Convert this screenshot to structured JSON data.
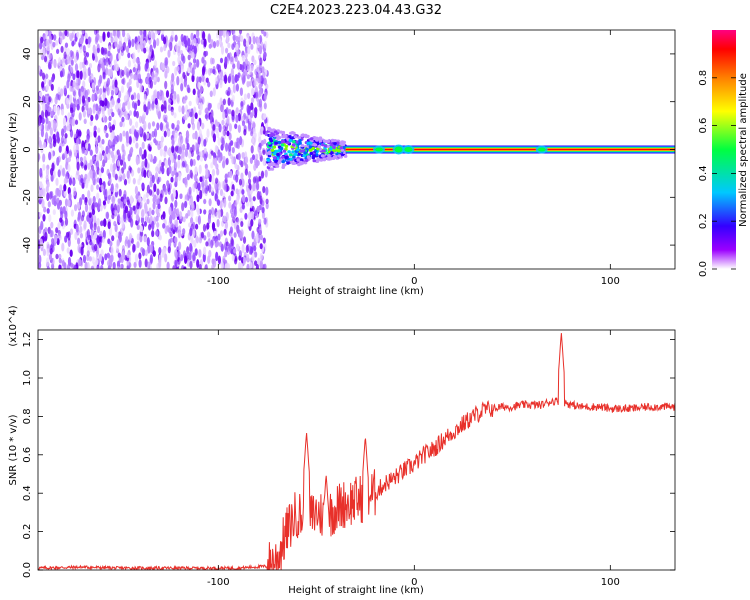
{
  "title": "C2E4.2023.223.04.43.G32",
  "chart_data": [
    {
      "type": "heatmap",
      "xlabel": "Height of straight line (km)",
      "ylabel": "Frequency (Hz)",
      "xlim": [
        -192,
        133
      ],
      "ylim": [
        -50,
        50
      ],
      "xticks": [
        -100,
        0,
        100
      ],
      "yticks": [
        -40,
        -20,
        0,
        20,
        40
      ],
      "colorbar": {
        "label": "Normalized spectral amplitude",
        "range": [
          0,
          1
        ],
        "ticks": [
          "0.0",
          "0.2",
          "0.4",
          "0.6",
          "0.8"
        ]
      },
      "signal": {
        "noise_region_x": [
          -192,
          -75
        ],
        "spread_region_x": [
          -75,
          -35
        ],
        "line_region_x": [
          -35,
          133
        ],
        "line_frequency": 0.0,
        "line_amplitude": 0.95
      }
    },
    {
      "type": "line",
      "xlabel": "Height of straight line (km)",
      "ylabel": "SNR (10 * v/v)",
      "yscale_note": "(x10^4)",
      "xlim": [
        -192,
        133
      ],
      "ylim": [
        0,
        1.25
      ],
      "xticks": [
        -100,
        0,
        100
      ],
      "yticks": [
        "0.0",
        "0.2",
        "0.4",
        "0.6",
        "0.8",
        "1.0",
        "1.2"
      ],
      "series": [
        {
          "color": "#e8302a",
          "x": [
            -192,
            -170,
            -150,
            -130,
            -110,
            -90,
            -75,
            -70,
            -65,
            -60,
            -55,
            -50,
            -45,
            -40,
            -35,
            -30,
            -25,
            -20,
            -15,
            -10,
            -5,
            0,
            5,
            10,
            15,
            20,
            25,
            30,
            35,
            40,
            45,
            50,
            55,
            60,
            65,
            70,
            75,
            80,
            85,
            90,
            95,
            100,
            110,
            120,
            133
          ],
          "y": [
            0.01,
            0.015,
            0.01,
            0.01,
            0.01,
            0.01,
            0.02,
            0.06,
            0.2,
            0.3,
            0.25,
            0.3,
            0.28,
            0.32,
            0.35,
            0.36,
            0.38,
            0.4,
            0.45,
            0.48,
            0.52,
            0.55,
            0.6,
            0.63,
            0.68,
            0.72,
            0.76,
            0.8,
            0.83,
            0.84,
            0.85,
            0.85,
            0.86,
            0.86,
            0.86,
            0.88,
            0.88,
            0.86,
            0.85,
            0.85,
            0.85,
            0.84,
            0.84,
            0.85,
            0.85
          ],
          "spikes": [
            {
              "x": -55,
              "y": 0.72
            },
            {
              "x": -45,
              "y": 0.5
            },
            {
              "x": -25,
              "y": 0.7
            },
            {
              "x": 75,
              "y": 1.24
            },
            {
              "x": 77,
              "y": 0.62
            }
          ]
        }
      ]
    }
  ]
}
